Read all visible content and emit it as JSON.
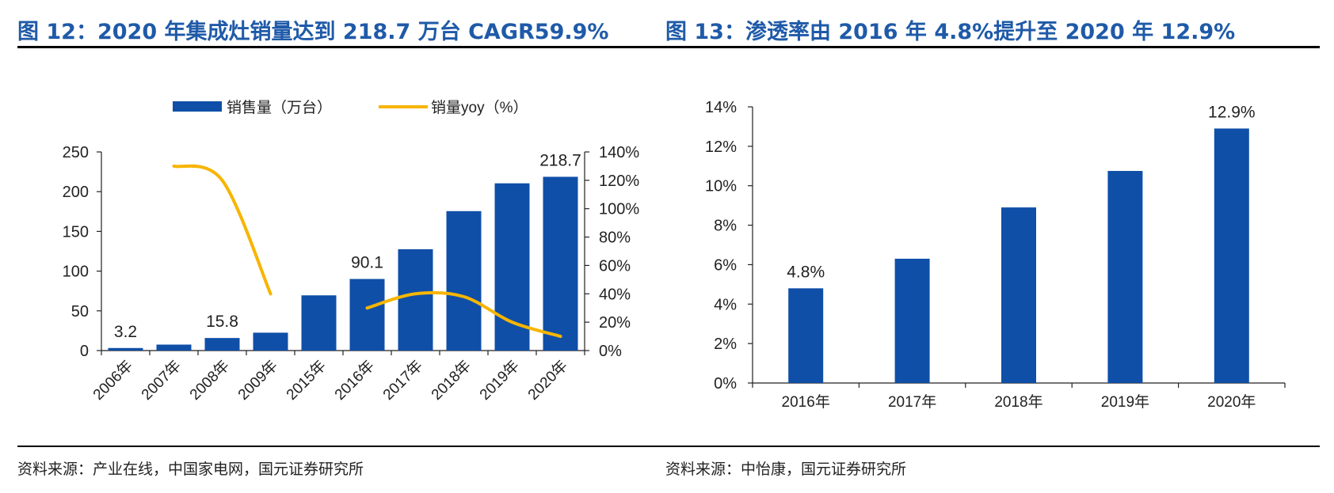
{
  "figures": {
    "left_title": "图 12：2020 年集成灶销量达到 218.7 万台 CAGR59.9%",
    "right_title": "图 13：渗透率由 2016 年 4.8%提升至 2020 年 12.9%",
    "left_source": "资料来源：产业在线，中国家电网，国元证券研究所",
    "right_source": "资料来源：中怡康，国元证券研究所"
  },
  "colors": {
    "title": "#1f5aa8",
    "bar": "#0f4fa8",
    "line": "#f7b500"
  },
  "chart_data": [
    {
      "type": "bar",
      "categories": [
        "2006年",
        "2007年",
        "2008年",
        "2009年",
        "2015年",
        "2016年",
        "2017年",
        "2018年",
        "2019年",
        "2020年"
      ],
      "series": [
        {
          "name": "销售量（万台）",
          "type": "bar",
          "axis": "left",
          "values": [
            3.2,
            7.5,
            15.8,
            22.5,
            69.5,
            90.1,
            127.5,
            175.5,
            210.5,
            218.7
          ]
        },
        {
          "name": "销量yoy（%）",
          "type": "line",
          "axis": "right",
          "values": [
            null,
            130,
            120,
            40,
            null,
            30,
            40,
            38,
            20,
            10
          ]
        }
      ],
      "data_labels": {
        "0": "3.2",
        "2": "15.8",
        "5": "90.1",
        "9": "218.7"
      },
      "ylim": [
        0,
        250
      ],
      "yticks": [
        "0",
        "50",
        "100",
        "150",
        "200",
        "250"
      ],
      "y2lim": [
        0,
        140
      ],
      "y2ticks": [
        "0%",
        "20%",
        "40%",
        "60%",
        "80%",
        "100%",
        "120%",
        "140%"
      ],
      "legend_position": "top",
      "grid": false
    },
    {
      "type": "bar",
      "categories": [
        "2016年",
        "2017年",
        "2018年",
        "2019年",
        "2020年"
      ],
      "values": [
        4.8,
        6.3,
        8.9,
        10.75,
        12.9
      ],
      "data_labels": {
        "0": "4.8%",
        "4": "12.9%"
      },
      "ylim": [
        0,
        14
      ],
      "yticks": [
        "0%",
        "2%",
        "4%",
        "6%",
        "8%",
        "10%",
        "12%",
        "14%"
      ],
      "grid": false
    }
  ]
}
